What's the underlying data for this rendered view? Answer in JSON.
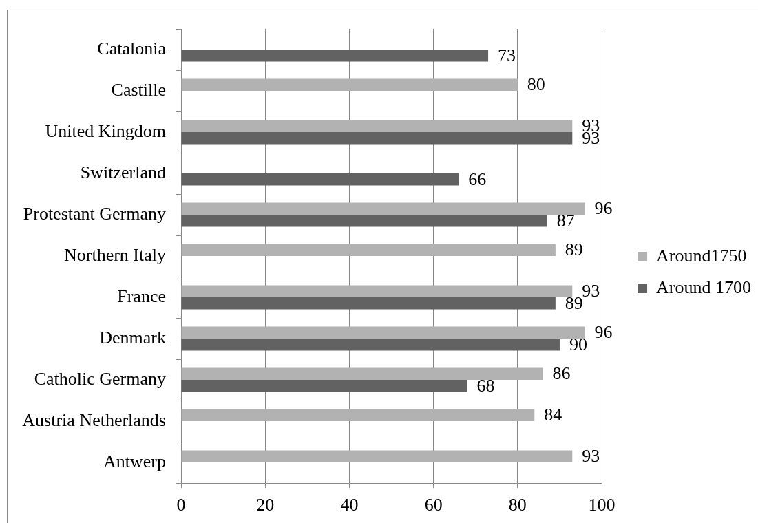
{
  "chart_data": {
    "type": "bar",
    "orientation": "horizontal",
    "categories": [
      "Catalonia",
      "Castille",
      "United Kingdom",
      "Switzerland",
      "Protestant Germany",
      "Northern Italy",
      "France",
      "Denmark",
      "Catholic Germany",
      "Austria Netherlands",
      "Antwerp"
    ],
    "series": [
      {
        "name": "Around1750",
        "color": "#b2b2b2",
        "values": [
          null,
          80,
          93,
          null,
          96,
          89,
          93,
          96,
          86,
          84,
          93
        ]
      },
      {
        "name": "Around 1700",
        "color": "#626262",
        "values": [
          73,
          null,
          93,
          66,
          87,
          null,
          89,
          90,
          68,
          null,
          null
        ]
      }
    ],
    "xlim": [
      0,
      100
    ],
    "xticks": [
      0,
      20,
      40,
      60,
      80,
      100
    ],
    "grid": "x",
    "legend": "right",
    "data_labels": true
  }
}
